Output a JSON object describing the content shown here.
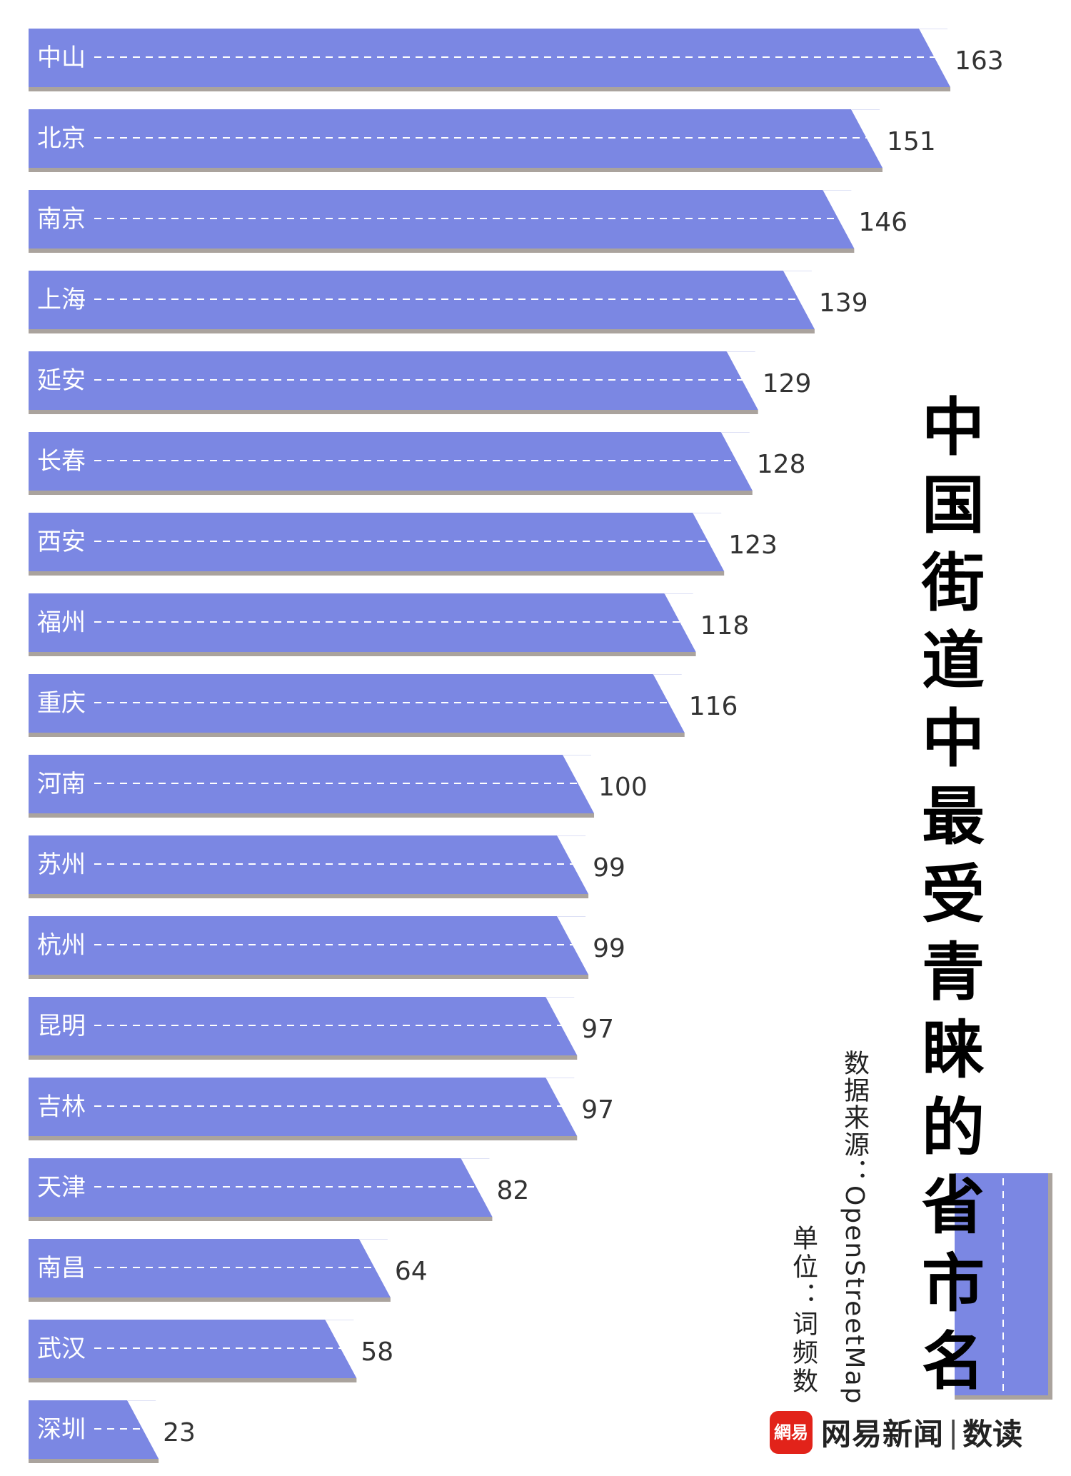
{
  "title": "中国街道中最受青睐的省市名",
  "source": "数据来源：OpenStreetMap",
  "unit": "单位：词频数",
  "logo": {
    "badge": "網易",
    "name": "网易新闻",
    "separator": "|",
    "sub": "数读"
  },
  "colors": {
    "bar": "#7b87e3",
    "bar_shadow": "#aaa39d",
    "dash": "#ffffff",
    "value_text": "#333333"
  },
  "chart_data": {
    "type": "bar",
    "orientation": "horizontal",
    "categories": [
      "中山",
      "北京",
      "南京",
      "上海",
      "延安",
      "长春",
      "西安",
      "福州",
      "重庆",
      "河南",
      "苏州",
      "杭州",
      "昆明",
      "吉林",
      "天津",
      "南昌",
      "武汉",
      "深圳"
    ],
    "values": [
      163,
      151,
      146,
      139,
      129,
      128,
      123,
      118,
      116,
      100,
      99,
      99,
      97,
      97,
      82,
      64,
      58,
      23
    ],
    "xlim": [
      0,
      163
    ],
    "grid": false,
    "legend": false
  }
}
